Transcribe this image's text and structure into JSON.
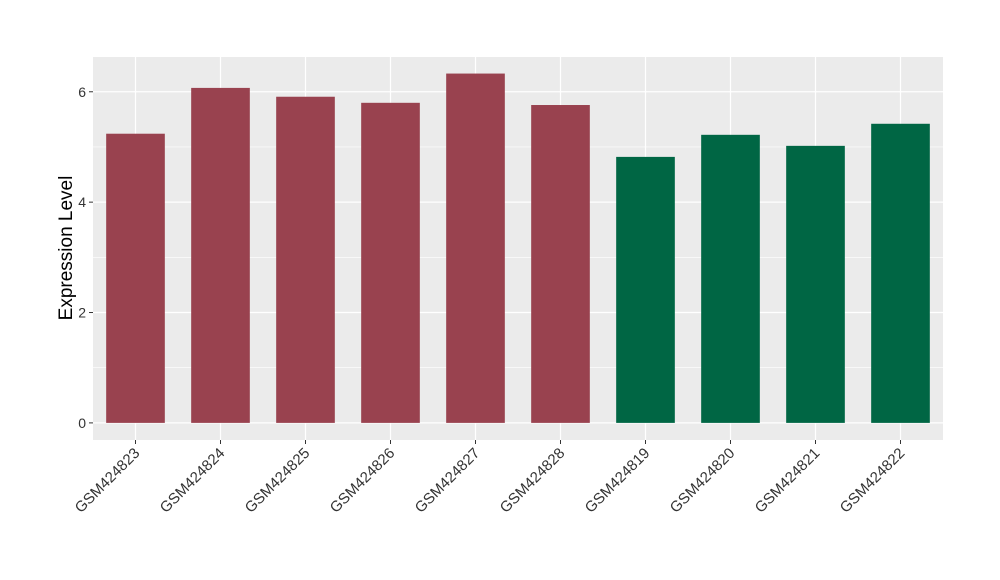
{
  "chart_data": {
    "type": "bar",
    "y_label": "Expression Level",
    "categories": [
      "GSM424823",
      "GSM424824",
      "GSM424825",
      "GSM424826",
      "GSM424827",
      "GSM424828",
      "GSM424819",
      "GSM424820",
      "GSM424821",
      "GSM424822"
    ],
    "values": [
      5.24,
      6.07,
      5.91,
      5.8,
      6.33,
      5.76,
      4.82,
      5.22,
      5.02,
      5.42
    ],
    "colors": [
      "#99424f",
      "#99424f",
      "#99424f",
      "#99424f",
      "#99424f",
      "#99424f",
      "#006644",
      "#006644",
      "#006644",
      "#006644"
    ],
    "ylim": [
      -0.31,
      6.63
    ],
    "yticks": [
      0,
      2,
      4,
      6
    ],
    "grid": true
  }
}
